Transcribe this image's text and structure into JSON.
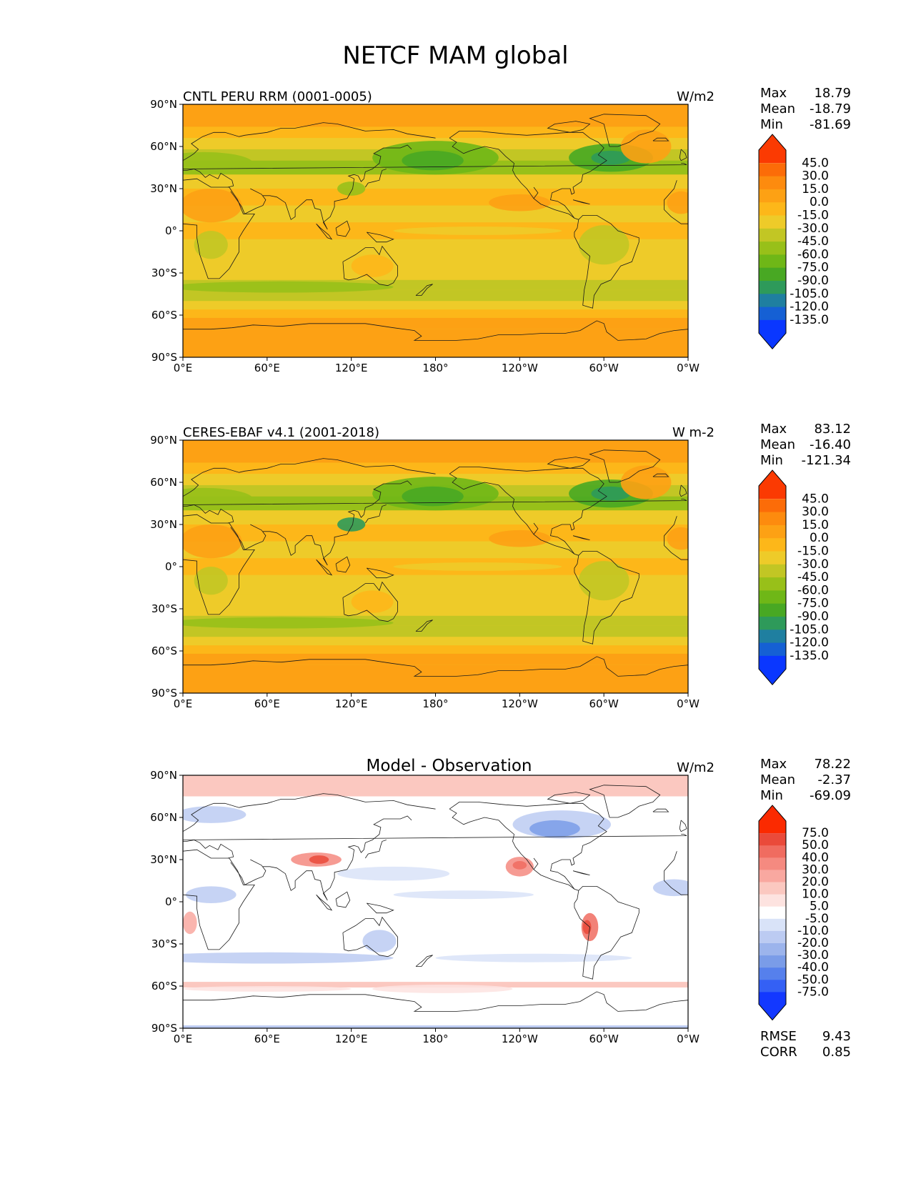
{
  "title": "NETCF MAM global",
  "colors": {
    "abs_levels": [
      "#0a37ff",
      "#1560d4",
      "#1f7fa0",
      "#2e9a5a",
      "#48a823",
      "#6fb717",
      "#98c019",
      "#c2c624",
      "#eecb29",
      "#fdb719",
      "#fda114",
      "#fd8b0e",
      "#fc6c08",
      "#fb3a02"
    ],
    "diff_levels": [
      "#1338ff",
      "#3460f5",
      "#5680ec",
      "#7a9ce8",
      "#9cb4ec",
      "#bccbf2",
      "#d9e3f8",
      "#ffffff",
      "#fde3e0",
      "#fbc8c0",
      "#f9a8a0",
      "#f58a80",
      "#f06c60",
      "#ea4a3a",
      "#fb2a00"
    ]
  },
  "icons": {
    "land": "coastline-lines",
    "cbar_ends": "triangle-extend"
  },
  "chart_data": [
    {
      "type": "heatmap",
      "title": "CNTL PERU RRM (0001-0005)",
      "units": "W/m2",
      "x_ticks": [
        "0°E",
        "60°E",
        "120°E",
        "180°",
        "120°W",
        "60°W",
        "0°W"
      ],
      "y_ticks": [
        "90°N",
        "60°N",
        "30°N",
        "0°",
        "30°S",
        "60°S",
        "90°S"
      ],
      "stats": [
        {
          "label": "Max",
          "value": "18.79"
        },
        {
          "label": "Mean",
          "value": "-18.79"
        },
        {
          "label": "Min",
          "value": "-81.69"
        }
      ],
      "colorbar_labels": [
        "45.0",
        "30.0",
        "15.0",
        "0.0",
        "-15.0",
        "-30.0",
        "-45.0",
        "-60.0",
        "-75.0",
        "-90.0",
        "-105.0",
        "-120.0",
        "-135.0"
      ]
    },
    {
      "type": "heatmap",
      "title": "CERES-EBAF v4.1 (2001-2018)",
      "units": "W m-2",
      "x_ticks": [
        "0°E",
        "60°E",
        "120°E",
        "180°",
        "120°W",
        "60°W",
        "0°W"
      ],
      "y_ticks": [
        "90°N",
        "60°N",
        "30°N",
        "0°",
        "30°S",
        "60°S",
        "90°S"
      ],
      "stats": [
        {
          "label": "Max",
          "value": "83.12"
        },
        {
          "label": "Mean",
          "value": "-16.40"
        },
        {
          "label": "Min",
          "value": "-121.34"
        }
      ],
      "colorbar_labels": [
        "45.0",
        "30.0",
        "15.0",
        "0.0",
        "-15.0",
        "-30.0",
        "-45.0",
        "-60.0",
        "-75.0",
        "-90.0",
        "-105.0",
        "-120.0",
        "-135.0"
      ]
    },
    {
      "type": "heatmap",
      "title": "Model - Observation",
      "units": "W/m2",
      "x_ticks": [
        "0°E",
        "60°E",
        "120°E",
        "180°",
        "120°W",
        "60°W",
        "0°W"
      ],
      "y_ticks": [
        "90°N",
        "60°N",
        "30°N",
        "0°",
        "30°S",
        "60°S",
        "90°S"
      ],
      "stats": [
        {
          "label": "Max",
          "value": "78.22"
        },
        {
          "label": "Mean",
          "value": "-2.37"
        },
        {
          "label": "Min",
          "value": "-69.09"
        }
      ],
      "colorbar_labels": [
        "75.0",
        "50.0",
        "40.0",
        "30.0",
        "20.0",
        "10.0",
        "5.0",
        "-5.0",
        "-10.0",
        "-20.0",
        "-30.0",
        "-40.0",
        "-50.0",
        "-75.0"
      ],
      "metrics": [
        {
          "label": "RMSE",
          "value": "9.43"
        },
        {
          "label": "CORR",
          "value": "0.85"
        }
      ]
    }
  ]
}
